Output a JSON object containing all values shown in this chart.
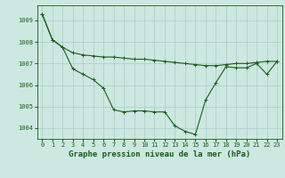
{
  "title": "Graphe pression niveau de la mer (hPa)",
  "background_color": "#cce8e0",
  "grid_color": "#aacccc",
  "line_color": "#1a5c1a",
  "xlim": [
    -0.5,
    23.5
  ],
  "ylim": [
    1003.5,
    1009.7
  ],
  "xticks": [
    0,
    1,
    2,
    3,
    4,
    5,
    6,
    7,
    8,
    9,
    10,
    11,
    12,
    13,
    14,
    15,
    16,
    17,
    18,
    19,
    20,
    21,
    22,
    23
  ],
  "yticks": [
    1004,
    1005,
    1006,
    1007,
    1008,
    1009
  ],
  "series1_x": [
    0,
    1,
    2,
    3,
    4,
    5,
    6,
    7,
    8,
    9,
    10,
    11,
    12,
    13,
    14,
    15,
    16,
    17,
    18,
    19,
    20,
    21,
    22,
    23
  ],
  "series1_y": [
    1009.3,
    1008.1,
    1007.75,
    1007.5,
    1007.4,
    1007.35,
    1007.3,
    1007.3,
    1007.25,
    1007.2,
    1007.2,
    1007.15,
    1007.1,
    1007.05,
    1007.0,
    1006.95,
    1006.9,
    1006.9,
    1006.95,
    1007.0,
    1007.0,
    1007.05,
    1007.1,
    1007.1
  ],
  "series2_x": [
    0,
    1,
    2,
    3,
    4,
    5,
    6,
    7,
    8,
    9,
    10,
    11,
    12,
    13,
    14,
    15,
    16,
    17,
    18,
    19,
    20,
    21,
    22,
    23
  ],
  "series2_y": [
    1009.3,
    1008.1,
    1007.75,
    1006.75,
    1006.5,
    1006.25,
    1005.85,
    1004.85,
    1004.75,
    1004.8,
    1004.8,
    1004.75,
    1004.75,
    1004.1,
    1003.85,
    1003.7,
    1005.3,
    1006.1,
    1006.85,
    1006.8,
    1006.8,
    1007.0,
    1006.5,
    1007.1
  ],
  "marker": "+",
  "marker_size": 3,
  "linewidth": 0.8,
  "tick_fontsize": 5,
  "xlabel_fontsize": 6.5
}
